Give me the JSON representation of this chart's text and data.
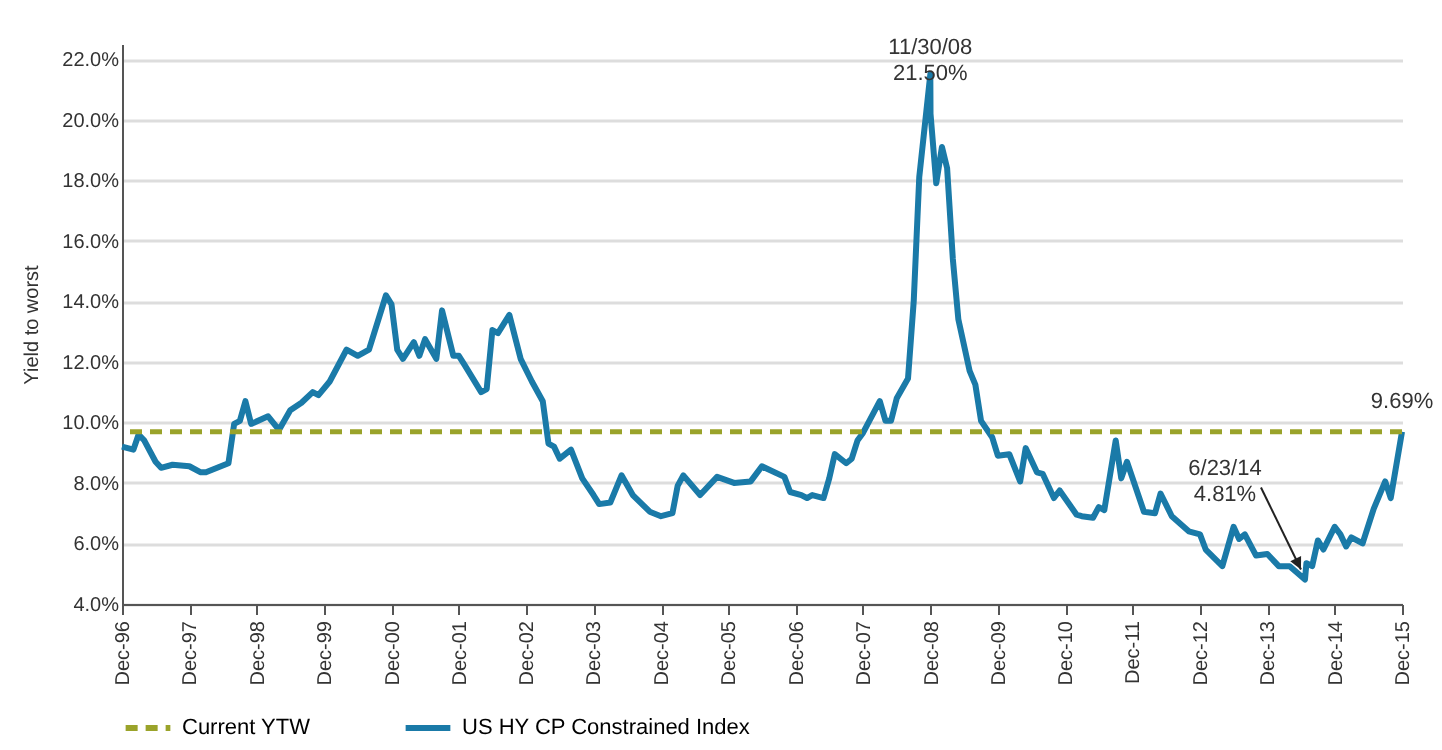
{
  "chart_data": {
    "type": "line",
    "ylabel": "Yield to worst",
    "legend": "bottom",
    "grid": "y",
    "xlim": [
      "1996-12",
      "2015-12"
    ],
    "xticks": [
      {
        "value": "1996-12",
        "label": "Dec-96"
      },
      {
        "value": "1997-12",
        "label": "Dec-97"
      },
      {
        "value": "1998-12",
        "label": "Dec-98"
      },
      {
        "value": "1999-12",
        "label": "Dec-99"
      },
      {
        "value": "2000-12",
        "label": "Dec-00"
      },
      {
        "value": "2001-12",
        "label": "Dec-01"
      },
      {
        "value": "2002-12",
        "label": "Dec-02"
      },
      {
        "value": "2003-12",
        "label": "Dec-03"
      },
      {
        "value": "2004-12",
        "label": "Dec-04"
      },
      {
        "value": "2005-12",
        "label": "Dec-05"
      },
      {
        "value": "2006-12",
        "label": "Dec-06"
      },
      {
        "value": "2007-12",
        "label": "Dec-07"
      },
      {
        "value": "2008-12",
        "label": "Dec-08"
      },
      {
        "value": "2009-12",
        "label": "Dec-09"
      },
      {
        "value": "2010-12",
        "label": "Dec-10"
      },
      {
        "value": "2011-12",
        "label": "Dec-11"
      },
      {
        "value": "2012-12",
        "label": "Dec-12"
      },
      {
        "value": "2013-12",
        "label": "Dec-13"
      },
      {
        "value": "2014-12",
        "label": "Dec-14"
      },
      {
        "value": "2015-12",
        "label": "Dec-15"
      }
    ],
    "ylim": [
      4,
      22.5
    ],
    "yticks": [
      {
        "value": 4,
        "label": "4.0%"
      },
      {
        "value": 6,
        "label": "6.0%"
      },
      {
        "value": 8,
        "label": "8.0%"
      },
      {
        "value": 10,
        "label": "10.0%"
      },
      {
        "value": 12,
        "label": "12.0%"
      },
      {
        "value": 14,
        "label": "14.0%"
      },
      {
        "value": 16,
        "label": "16.0%"
      },
      {
        "value": 18,
        "label": "18.0%"
      },
      {
        "value": 20,
        "label": "20.0%"
      },
      {
        "value": 22,
        "label": "22.0%"
      }
    ],
    "x": [
      "1996-12",
      "1997-02",
      "1997-03",
      "1997-04",
      "1997-06",
      "1997-07",
      "1997-09",
      "1997-12",
      "1998-02",
      "1998-03",
      "1998-07",
      "1998-08",
      "1998-09",
      "1998-10",
      "1998-11",
      "1999-02",
      "1999-04",
      "1999-06",
      "1999-08",
      "1999-10",
      "1999-11",
      "2000-01",
      "2000-04",
      "2000-06",
      "2000-08",
      "2000-11",
      "2000-12",
      "2001-01",
      "2001-02",
      "2001-04",
      "2001-05",
      "2001-06",
      "2001-08",
      "2001-09",
      "2001-11",
      "2001-12",
      "2002-01",
      "2002-04",
      "2002-05",
      "2002-06",
      "2002-07",
      "2002-09",
      "2002-11",
      "2003-01",
      "2003-03",
      "2003-04",
      "2003-05",
      "2003-06",
      "2003-08",
      "2003-10",
      "2003-12",
      "2004-01",
      "2004-03",
      "2004-05",
      "2004-07",
      "2004-10",
      "2004-12",
      "2005-02",
      "2005-03",
      "2005-04",
      "2005-07",
      "2005-10",
      "2006-01",
      "2006-04",
      "2006-06",
      "2006-10",
      "2006-11",
      "2007-01",
      "2007-02",
      "2007-03",
      "2007-05",
      "2007-06",
      "2007-07",
      "2007-09",
      "2007-10",
      "2007-11",
      "2007-12",
      "2008-03",
      "2008-04",
      "2008-05",
      "2008-06",
      "2008-08",
      "2008-09",
      "2008-10",
      "2008-11-30",
      "2008-12",
      "2009-01",
      "2009-02",
      "2009-03",
      "2009-04",
      "2009-05",
      "2009-07",
      "2009-08",
      "2009-09",
      "2009-11",
      "2009-12",
      "2010-02",
      "2010-04",
      "2010-05",
      "2010-07",
      "2010-08",
      "2010-10",
      "2010-11",
      "2011-02",
      "2011-03",
      "2011-05",
      "2011-06",
      "2011-07",
      "2011-09",
      "2011-10",
      "2011-11",
      "2012-02",
      "2012-04",
      "2012-05",
      "2012-07",
      "2012-10",
      "2012-12",
      "2013-01",
      "2013-04",
      "2013-06",
      "2013-07",
      "2013-08",
      "2013-10",
      "2013-12",
      "2014-02",
      "2014-04",
      "2014-06-23",
      "2014-07",
      "2014-08",
      "2014-09",
      "2014-10",
      "2014-12",
      "2015-01",
      "2015-02",
      "2015-03",
      "2015-05",
      "2015-07",
      "2015-09",
      "2015-10",
      "2015-12"
    ],
    "series": [
      {
        "name": "US HY CP Constrained Index",
        "color": "#1a7aa8",
        "values": [
          9.2,
          9.1,
          9.6,
          9.4,
          8.7,
          8.5,
          8.6,
          8.55,
          8.35,
          8.35,
          8.65,
          9.95,
          10.05,
          10.7,
          9.95,
          10.2,
          9.75,
          10.4,
          10.65,
          11.0,
          10.9,
          11.35,
          12.4,
          12.2,
          12.4,
          14.2,
          13.9,
          12.4,
          12.1,
          12.65,
          12.2,
          12.75,
          12.1,
          13.7,
          12.2,
          12.2,
          11.9,
          11.0,
          11.1,
          13.05,
          12.95,
          13.55,
          12.1,
          11.35,
          10.7,
          9.3,
          9.2,
          8.8,
          9.1,
          8.15,
          7.6,
          7.3,
          7.35,
          8.25,
          7.6,
          7.05,
          6.9,
          7.0,
          7.9,
          8.25,
          7.6,
          8.2,
          8.0,
          8.05,
          8.55,
          8.2,
          7.7,
          7.6,
          7.5,
          7.6,
          7.5,
          8.15,
          8.95,
          8.65,
          8.8,
          9.4,
          9.65,
          10.7,
          10.05,
          10.05,
          10.8,
          11.45,
          14.0,
          18.1,
          21.5,
          20.2,
          17.9,
          19.1,
          18.4,
          15.4,
          13.4,
          11.7,
          11.25,
          10.05,
          9.5,
          8.9,
          8.95,
          8.05,
          9.15,
          8.35,
          8.3,
          7.5,
          7.75,
          6.95,
          6.9,
          6.85,
          7.2,
          7.1,
          9.4,
          8.15,
          8.7,
          7.05,
          7.0,
          7.65,
          6.9,
          6.4,
          6.3,
          5.8,
          5.25,
          6.55,
          6.15,
          6.3,
          5.6,
          5.65,
          5.25,
          5.25,
          4.81,
          5.35,
          5.25,
          6.1,
          5.8,
          6.55,
          6.3,
          5.9,
          6.2,
          6.0,
          7.15,
          8.05,
          7.5,
          9.69
        ]
      }
    ],
    "ref_lines": [
      {
        "axis": "y",
        "value": 9.69,
        "label": "Current YTW",
        "color": "#9aa32a",
        "line_style": "dashed"
      }
    ],
    "annotations": [
      {
        "text": "11/30/08\n21.50%",
        "x": "2008-11-30",
        "y": 21.5
      },
      {
        "text": "6/23/14\n4.81%",
        "x": "2014-06-23",
        "y": 4.81
      },
      {
        "text": "9.69%",
        "x": "2015-12",
        "y": 9.69
      }
    ]
  }
}
